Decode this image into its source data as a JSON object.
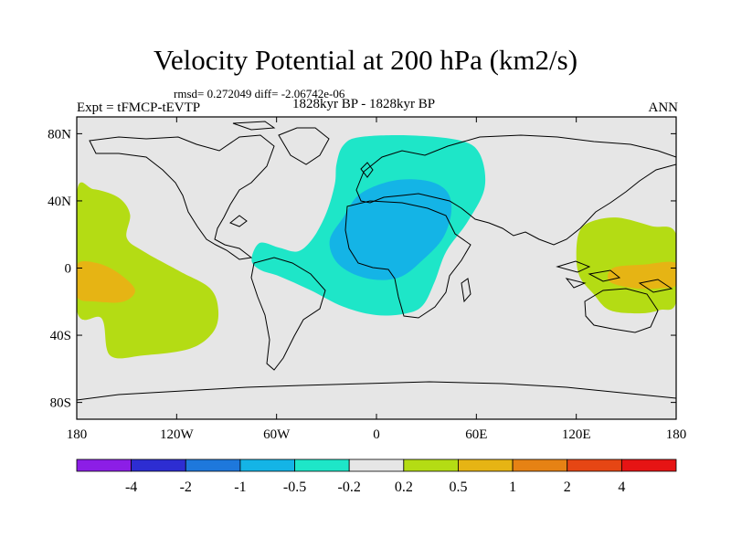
{
  "title": "Velocity Potential at 200 hPa (km2/s)",
  "stats_line": "rmsd= 0.272049 diff= -2.06742e-06",
  "left_label": "Expt = tFMCP-tEVTP",
  "center_label": "1828kyr BP - 1828kyr BP",
  "right_label": "ANN",
  "chart_data": {
    "type": "filled-contour-map",
    "variable": "Velocity Potential at 200 hPa",
    "units": "km2/s",
    "x_axis": {
      "range": [
        -180,
        180
      ],
      "ticks": [
        {
          "value": -180,
          "label": "180"
        },
        {
          "value": -120,
          "label": "120W"
        },
        {
          "value": -60,
          "label": "60W"
        },
        {
          "value": 0,
          "label": "0"
        },
        {
          "value": 60,
          "label": "60E"
        },
        {
          "value": 120,
          "label": "120E"
        },
        {
          "value": 180,
          "label": "180"
        }
      ]
    },
    "y_axis": {
      "range": [
        -90,
        90
      ],
      "ticks": [
        {
          "value": 80,
          "label": "80N"
        },
        {
          "value": 40,
          "label": "40N"
        },
        {
          "value": 0,
          "label": "0"
        },
        {
          "value": -40,
          "label": "40S"
        },
        {
          "value": -80,
          "label": "80S"
        }
      ]
    },
    "contour_levels": [
      -4,
      -2,
      -1,
      -0.5,
      -0.2,
      0.2,
      0.5,
      1,
      2,
      4
    ],
    "colorbar": {
      "labels": [
        "-4",
        "-2",
        "-1",
        "-0.5",
        "-0.2",
        "0.2",
        "0.5",
        "1",
        "2",
        "4"
      ],
      "colors": [
        "#8c1ee6",
        "#2d2dd2",
        "#1e78dc",
        "#14b4e6",
        "#1ee6c8",
        "#e6e6e6",
        "#b4dc14",
        "#e6b414",
        "#e68214",
        "#e64614",
        "#e61414"
      ]
    },
    "regions": [
      {
        "name": "atlantic-africa-negative-outer",
        "level_range": [
          -0.5,
          -0.2
        ],
        "color": "#1ee6c8",
        "points": [
          [
            -20,
            73
          ],
          [
            -10,
            78
          ],
          [
            20,
            79
          ],
          [
            50,
            76
          ],
          [
            62,
            68
          ],
          [
            65,
            48
          ],
          [
            55,
            28
          ],
          [
            42,
            10
          ],
          [
            35,
            -8
          ],
          [
            28,
            -22
          ],
          [
            18,
            -27
          ],
          [
            0,
            -28
          ],
          [
            -20,
            -23
          ],
          [
            -40,
            -13
          ],
          [
            -58,
            -5
          ],
          [
            -70,
            -1
          ],
          [
            -75,
            5
          ],
          [
            -70,
            15
          ],
          [
            -58,
            12
          ],
          [
            -47,
            10
          ],
          [
            -38,
            18
          ],
          [
            -30,
            33
          ],
          [
            -25,
            50
          ],
          [
            -24,
            62
          ]
        ]
      },
      {
        "name": "atlantic-africa-negative-core",
        "level_range": [
          -1,
          -0.5
        ],
        "color": "#14b4e6",
        "points": [
          [
            -20,
            30
          ],
          [
            -10,
            44
          ],
          [
            10,
            52
          ],
          [
            30,
            52
          ],
          [
            42,
            46
          ],
          [
            45,
            34
          ],
          [
            40,
            18
          ],
          [
            28,
            5
          ],
          [
            15,
            -5
          ],
          [
            0,
            -7
          ],
          [
            -15,
            -3
          ],
          [
            -25,
            5
          ],
          [
            -28,
            17
          ]
        ]
      },
      {
        "name": "east-pacific-positive-outer",
        "level_range": [
          0.2,
          0.5
        ],
        "color": "#b4dc14",
        "points": [
          [
            -180,
            45
          ],
          [
            -170,
            47
          ],
          [
            -155,
            42
          ],
          [
            -148,
            32
          ],
          [
            -150,
            18
          ],
          [
            -140,
            10
          ],
          [
            -118,
            -2
          ],
          [
            -100,
            -12
          ],
          [
            -95,
            -25
          ],
          [
            -98,
            -38
          ],
          [
            -112,
            -48
          ],
          [
            -140,
            -52
          ],
          [
            -160,
            -52
          ],
          [
            -165,
            -30
          ],
          [
            -180,
            -25
          ]
        ]
      },
      {
        "name": "east-pacific-positive-inner",
        "level_range": [
          0.5,
          1
        ],
        "color": "#e6b414",
        "points": [
          [
            -180,
            2
          ],
          [
            -168,
            3
          ],
          [
            -155,
            -3
          ],
          [
            -145,
            -13
          ],
          [
            -152,
            -20
          ],
          [
            -168,
            -20
          ],
          [
            -180,
            -17
          ]
        ]
      },
      {
        "name": "west-pacific-positive-outer",
        "level_range": [
          0.2,
          0.5
        ],
        "color": "#b4dc14",
        "points": [
          [
            180,
            20
          ],
          [
            165,
            25
          ],
          [
            145,
            30
          ],
          [
            130,
            28
          ],
          [
            122,
            22
          ],
          [
            120,
            8
          ],
          [
            122,
            -5
          ],
          [
            130,
            -15
          ],
          [
            140,
            -25
          ],
          [
            158,
            -27
          ],
          [
            170,
            -25
          ],
          [
            180,
            -20
          ]
        ]
      },
      {
        "name": "west-pacific-positive-inner",
        "level_range": [
          0.5,
          1
        ],
        "color": "#e6b414",
        "points": [
          [
            180,
            3
          ],
          [
            160,
            2
          ],
          [
            142,
            0
          ],
          [
            140,
            -8
          ],
          [
            155,
            -12
          ],
          [
            170,
            -12
          ],
          [
            180,
            -10
          ]
        ]
      }
    ]
  }
}
